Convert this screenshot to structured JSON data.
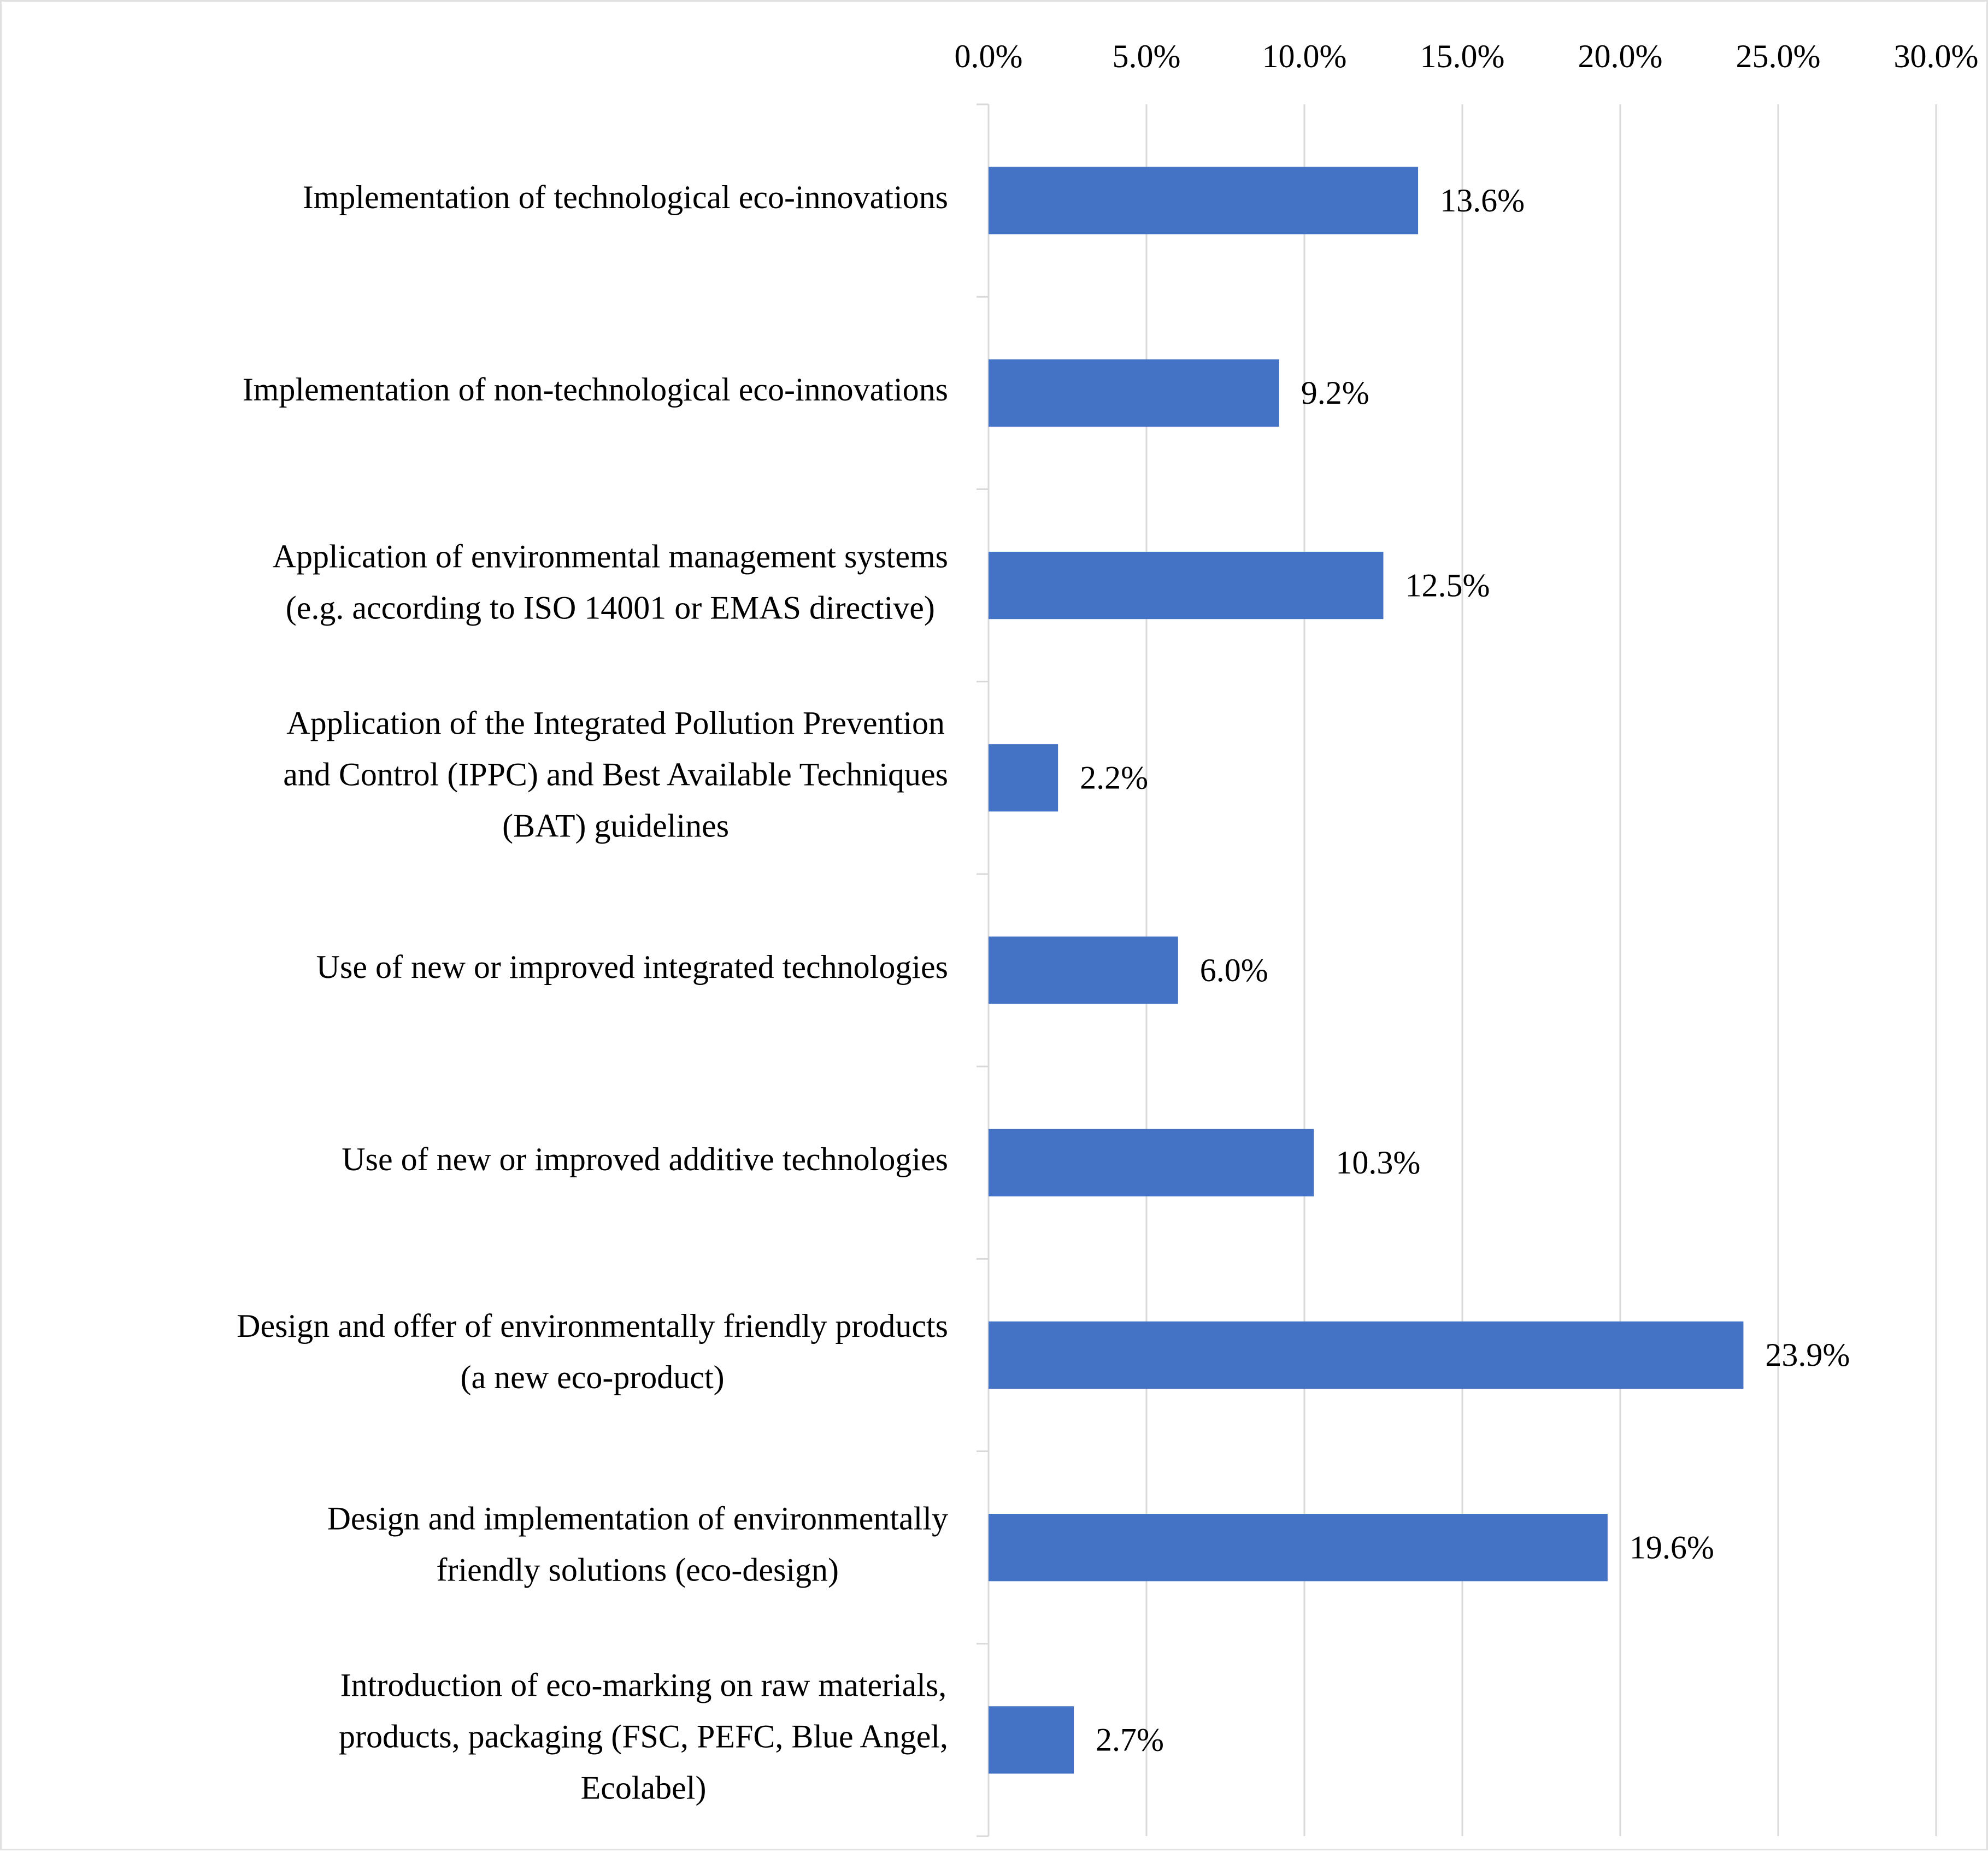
{
  "chart_data": {
    "type": "bar",
    "orientation": "horizontal",
    "title": "",
    "xlabel": "",
    "ylabel": "",
    "xlim": [
      0,
      30
    ],
    "x_ticks": [
      0,
      5,
      10,
      15,
      20,
      25,
      30
    ],
    "x_tick_labels": [
      "0.0%",
      "5.0%",
      "10.0%",
      "15.0%",
      "20.0%",
      "25.0%",
      "30.0%"
    ],
    "axis_position": "top",
    "grid": true,
    "legend": false,
    "categories": [
      [
        "Implementation of technological eco-innovations"
      ],
      [
        "Implementation of non-technological eco-innovations"
      ],
      [
        "Application of environmental management systems",
        "(e.g. according to ISO 14001 or EMAS directive)"
      ],
      [
        "Application of the Integrated Pollution Prevention",
        "and Control (IPPC) and Best Available Techniques",
        "(BAT) guidelines"
      ],
      [
        "Use of new or improved integrated technologies"
      ],
      [
        "Use of new or improved additive technologies"
      ],
      [
        "Design and offer of environmentally friendly products",
        "(a new eco-product)"
      ],
      [
        "Design and implementation of environmentally",
        "friendly solutions (eco-design)"
      ],
      [
        "Introduction of eco-marking on raw materials,",
        "products, packaging (FSC, PEFC, Blue Angel,",
        "Ecolabel)"
      ]
    ],
    "values": [
      13.6,
      9.2,
      12.5,
      2.2,
      6.0,
      10.3,
      23.9,
      19.6,
      2.7
    ],
    "data_labels": [
      "13.6%",
      "9.2%",
      "12.5%",
      "2.2%",
      "6.0%",
      "10.3%",
      "23.9%",
      "19.6%",
      "2.7%"
    ],
    "colors": {
      "bar": "#4472C4",
      "grid": "#d9d9d9",
      "text": "#000000"
    }
  }
}
